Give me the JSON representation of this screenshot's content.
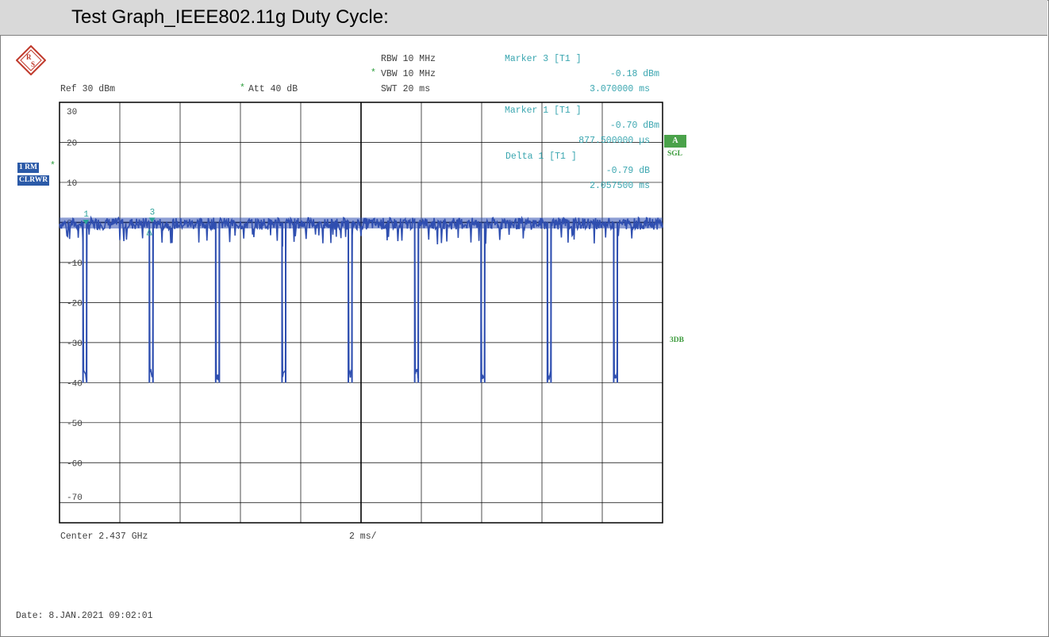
{
  "title": "Test Graph_IEEE802.11g Duty Cycle:",
  "header": {
    "rbw": "RBW 10 MHz",
    "vbw": "VBW 10 MHz",
    "vbw_star": "*",
    "swt": "SWT 20 ms",
    "ref": "Ref   30 dBm",
    "att": "Att   40 dB",
    "att_star": "*"
  },
  "markers": {
    "m3_title": "Marker 3 [T1 ]",
    "m3_level": "-0.18 dBm",
    "m3_time": "3.070000 ms",
    "m1_title": "Marker 1 [T1 ]",
    "m1_level": "-0.70 dBm",
    "m1_time": "877.500000 µs",
    "d1_title": "Delta 1 [T1 ]",
    "d1_level": "-0.79 dB",
    "d1_time": "2.057500 ms"
  },
  "side": {
    "trace_badge": "1 RM",
    "trace_star": "*",
    "mode_badge": "CLRWR",
    "a_badge": "A",
    "sgl": "SGL",
    "three_db": "3DB"
  },
  "footer": {
    "center": "Center 2.437 GHz",
    "span": "2 ms/",
    "date": "Date: 8.JAN.2021  09:02:01"
  },
  "colors": {
    "trace": "#2f4fb0",
    "marker": "#2aa19a",
    "grid": "#000000"
  },
  "chart_data": {
    "type": "line",
    "ylabel": "",
    "xlabel": "",
    "y_ticks": [
      "30",
      "20",
      "10",
      "0",
      "-10",
      "-20",
      "-30",
      "-40",
      "-50",
      "-60",
      "-70"
    ],
    "ylim": [
      -75,
      30
    ],
    "xlim": [
      0,
      20
    ],
    "x_unit": "ms",
    "grid": true,
    "series": [
      {
        "baseline_dbm": 0,
        "dip_level_dbm": -38,
        "dip_start_ms": [
          0.78,
          2.98,
          5.18,
          7.38,
          9.58,
          11.78,
          13.98,
          16.18,
          18.38
        ],
        "dip_width_ms": 0.12,
        "short_spike_ms": [
          7.4
        ],
        "short_spike_dbm": -6
      }
    ],
    "markers": [
      {
        "label": "1",
        "x_ms": 0.8775,
        "y_dbm": -0.7
      },
      {
        "label": "3",
        "x_ms": 3.07,
        "y_dbm": -0.18
      },
      {
        "label": "1",
        "x_ms": 2.935,
        "y_dbm": -0.79,
        "delta": true
      }
    ]
  }
}
